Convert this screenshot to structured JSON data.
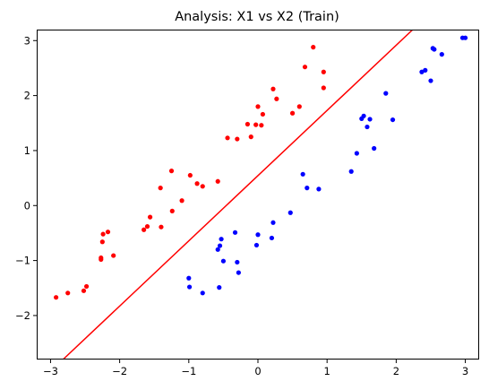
{
  "chart_data": {
    "type": "scatter",
    "title": "Analysis: X1 vs X2 (Train)",
    "xlabel": "",
    "ylabel": "",
    "xlim": [
      -3.2,
      3.2
    ],
    "ylim": [
      -2.8,
      3.2
    ],
    "xticks": [
      -3,
      -2,
      -1,
      0,
      1,
      2,
      3
    ],
    "yticks": [
      -2,
      -1,
      0,
      1,
      2,
      3
    ],
    "grid": false,
    "legend": "none",
    "series": [
      {
        "color": "#ff0000",
        "points": [
          [
            -2.92,
            -1.67
          ],
          [
            -2.75,
            -1.59
          ],
          [
            -2.52,
            -1.55
          ],
          [
            -2.48,
            -1.47
          ],
          [
            -2.27,
            -0.95
          ],
          [
            -2.27,
            -0.98
          ],
          [
            -2.25,
            -0.66
          ],
          [
            -2.24,
            -0.52
          ],
          [
            -2.17,
            -0.48
          ],
          [
            -2.09,
            -0.91
          ],
          [
            -1.65,
            -0.44
          ],
          [
            -1.6,
            -0.38
          ],
          [
            -1.56,
            -0.21
          ],
          [
            -1.4,
            -0.39
          ],
          [
            -1.41,
            0.32
          ],
          [
            -1.25,
            0.63
          ],
          [
            -1.24,
            -0.1
          ],
          [
            -1.1,
            0.09
          ],
          [
            -0.98,
            0.55
          ],
          [
            -0.88,
            0.4
          ],
          [
            -0.8,
            0.35
          ],
          [
            -0.58,
            0.44
          ],
          [
            -0.44,
            1.23
          ],
          [
            -0.3,
            1.21
          ],
          [
            -0.15,
            1.48
          ],
          [
            -0.1,
            1.25
          ],
          [
            -0.03,
            1.47
          ],
          [
            0.0,
            1.8
          ],
          [
            0.05,
            1.46
          ],
          [
            0.07,
            1.66
          ],
          [
            0.22,
            2.12
          ],
          [
            0.27,
            1.94
          ],
          [
            0.5,
            1.68
          ],
          [
            0.6,
            1.8
          ],
          [
            0.68,
            2.52
          ],
          [
            0.8,
            2.88
          ],
          [
            0.95,
            2.43
          ],
          [
            0.95,
            2.14
          ]
        ]
      },
      {
        "color": "#0000ff",
        "points": [
          [
            -1.0,
            -1.32
          ],
          [
            -0.99,
            -1.48
          ],
          [
            -0.8,
            -1.59
          ],
          [
            -0.56,
            -1.49
          ],
          [
            -0.58,
            -0.8
          ],
          [
            -0.55,
            -0.73
          ],
          [
            -0.53,
            -0.61
          ],
          [
            -0.5,
            -1.01
          ],
          [
            -0.33,
            -0.49
          ],
          [
            -0.3,
            -1.03
          ],
          [
            -0.28,
            -1.22
          ],
          [
            -0.02,
            -0.72
          ],
          [
            0.0,
            -0.53
          ],
          [
            0.2,
            -0.59
          ],
          [
            0.22,
            -0.31
          ],
          [
            0.47,
            -0.13
          ],
          [
            0.65,
            0.57
          ],
          [
            0.71,
            0.32
          ],
          [
            0.88,
            0.3
          ],
          [
            1.35,
            0.62
          ],
          [
            1.43,
            0.95
          ],
          [
            1.5,
            1.58
          ],
          [
            1.53,
            1.63
          ],
          [
            1.58,
            1.43
          ],
          [
            1.62,
            1.57
          ],
          [
            1.68,
            1.04
          ],
          [
            1.85,
            2.04
          ],
          [
            1.95,
            1.56
          ],
          [
            2.37,
            2.43
          ],
          [
            2.42,
            2.46
          ],
          [
            2.5,
            2.27
          ],
          [
            2.53,
            2.86
          ],
          [
            2.55,
            2.84
          ],
          [
            2.66,
            2.75
          ],
          [
            2.96,
            3.05
          ],
          [
            3.0,
            3.05
          ]
        ]
      }
    ],
    "line": {
      "color": "#ff0000",
      "points": [
        [
          -2.82,
          -2.8
        ],
        [
          2.24,
          3.2
        ]
      ]
    }
  }
}
